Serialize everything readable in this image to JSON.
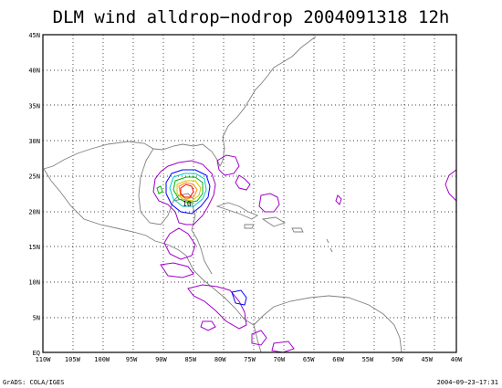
{
  "title": "DLM wind alldrop−nodrop 2004091318 12h",
  "footer": {
    "left": "GrADS: COLA/IGES",
    "right": "2004−09−23−17:31"
  },
  "axes": {
    "lat_labels": [
      "EQ",
      "5N",
      "10N",
      "15N",
      "20N",
      "25N",
      "30N",
      "35N",
      "40N",
      "45N"
    ],
    "lon_labels": [
      "110W",
      "105W",
      "100W",
      "95W",
      "90W",
      "85W",
      "80W",
      "75W",
      "70W",
      "65W",
      "60W",
      "55W",
      "50W",
      "45W",
      "40W"
    ],
    "lat_range": [
      0,
      45
    ],
    "lon_range": [
      -110,
      -40
    ],
    "grid": "dotted"
  },
  "contour_label": "10",
  "colors": {
    "frame": "#000000",
    "coast": "#808080",
    "grid": "#000000",
    "purple": "#a000c8",
    "blue": "#0000ff",
    "cyan": "#00c8c8",
    "green": "#00b400",
    "yellow": "#c8c800",
    "orange": "#ff8c00",
    "red": "#ff0000"
  }
}
